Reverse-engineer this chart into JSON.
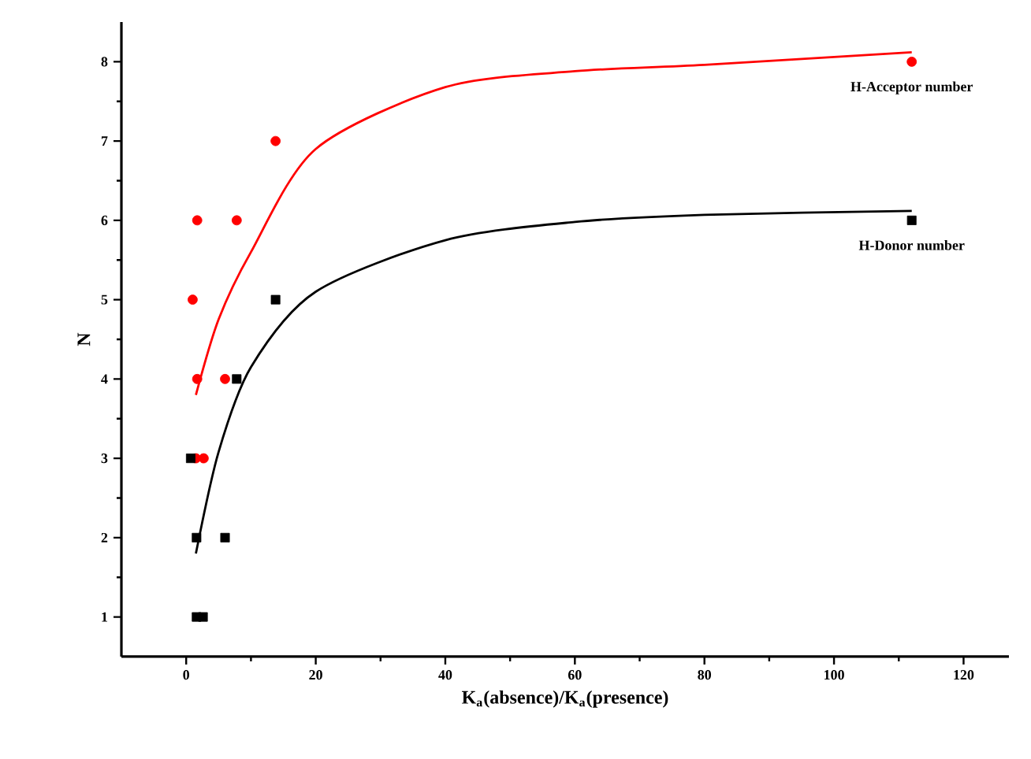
{
  "chart_data": {
    "type": "scatter",
    "xlabel": "K$_{a}$(absence)/K$_{a}$(presence)",
    "ylabel": "N",
    "xlim": [
      -10,
      127
    ],
    "ylim": [
      0.5,
      8.5
    ],
    "xticks": [
      0,
      20,
      40,
      60,
      80,
      100,
      120
    ],
    "yticks": [
      1,
      2,
      3,
      4,
      5,
      6,
      7,
      8
    ],
    "grid": false,
    "series": [
      {
        "name": "H-Acceptor number",
        "marker": "circle",
        "color": "#ff0000",
        "x": [
          1,
          1.7,
          1.7,
          1.5,
          2.7,
          6,
          7.8,
          13.8,
          112
        ],
        "values": [
          5,
          6,
          4,
          3,
          3,
          4,
          6,
          7,
          8
        ]
      },
      {
        "name": "H-Donor number",
        "marker": "square",
        "color": "#000000",
        "x": [
          0.7,
          1.6,
          1.6,
          2.6,
          6,
          7.8,
          13.8,
          112
        ],
        "values": [
          3,
          2,
          1,
          1,
          2,
          4,
          5,
          6
        ]
      },
      {
        "type": "line",
        "marker": "none",
        "color": "#ff0000",
        "x": [
          1.5,
          5,
          10,
          20,
          40,
          60,
          80,
          112
        ],
        "values": [
          3.8,
          4.75,
          5.6,
          6.9,
          7.68,
          7.88,
          7.96,
          8.12
        ]
      },
      {
        "type": "line",
        "marker": "none",
        "color": "#000000",
        "x": [
          1.5,
          5,
          10,
          20,
          40,
          60,
          80,
          112
        ],
        "values": [
          1.8,
          3.08,
          4.15,
          5.1,
          5.75,
          5.98,
          6.07,
          6.12
        ]
      }
    ]
  }
}
